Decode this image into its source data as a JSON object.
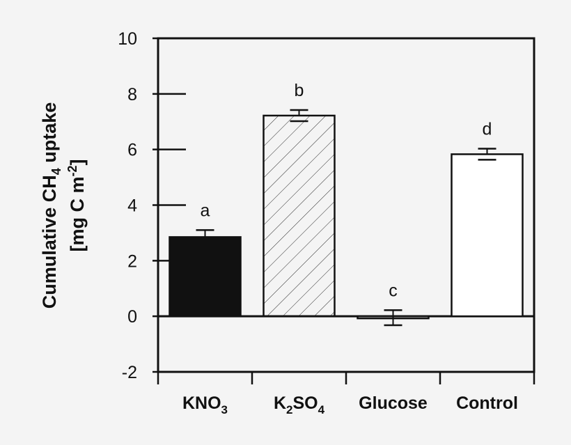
{
  "chart_data": {
    "type": "bar",
    "categories": [
      "KNO3",
      "K2SO4",
      "Glucose",
      "Control"
    ],
    "category_labels": [
      {
        "main": "KNO",
        "sub": "3",
        "tail": ""
      },
      {
        "main": "K",
        "sub": "2",
        "tail": "SO",
        "sub2": "4"
      },
      {
        "main": "Glucose",
        "sub": "",
        "tail": ""
      },
      {
        "main": "Control",
        "sub": "",
        "tail": ""
      }
    ],
    "values": [
      2.85,
      7.22,
      -0.05,
      5.83
    ],
    "errors": [
      0.25,
      0.2,
      0.27,
      0.2
    ],
    "significance_letters": [
      "a",
      "b",
      "c",
      "d"
    ],
    "fills": [
      "solid-black",
      "diagonal-hatch",
      "white",
      "white"
    ],
    "ylabel_line1": "Cumulative CH",
    "ylabel_line1_sub": "4",
    "ylabel_line1_tail": " uptake",
    "ylabel_line2": "[mg C m",
    "ylabel_line2_sup": "-2",
    "ylabel_line2_tail": "]",
    "ylim": [
      -2,
      10
    ],
    "yticks": [
      -2,
      0,
      2,
      4,
      6,
      8,
      10
    ],
    "grid": false,
    "colors": {
      "bar_solid": "#111111",
      "outline": "#111111",
      "background": "#f4f4f4"
    }
  }
}
